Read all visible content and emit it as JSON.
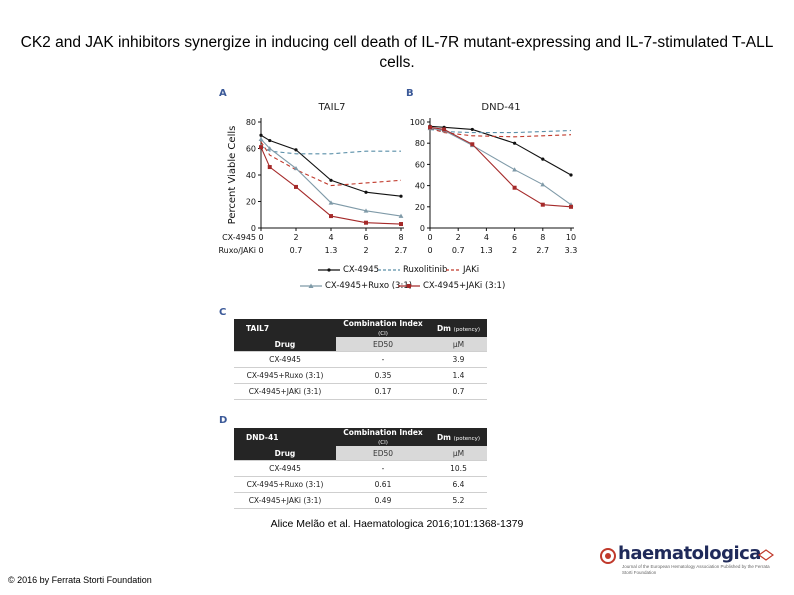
{
  "slide": {
    "title": "CK2 and JAK inhibitors synergize in inducing cell death of IL-7R mutant-expressing and IL-7-stimulated T-ALL cells.",
    "citation": "Alice Melão et al. Haematologica 2016;101:1368-1379",
    "copyright": "© 2016 by Ferrata Storti Foundation"
  },
  "logo": {
    "text": "haematologica",
    "subtitle": "Journal of the European Hematology Association Published by the Ferrata Storti Foundation"
  },
  "panels": {
    "A": "A",
    "B": "B",
    "C": "C",
    "D": "D"
  },
  "colors": {
    "cx": "#111111",
    "ruxo": "#5a8fa8",
    "jaki": "#c0392b",
    "cx_ruxo": "#7f9aa8",
    "cx_jaki": "#a52a2a"
  },
  "chart_data": [
    {
      "type": "line",
      "title": "TAIL7",
      "ylabel": "Percent Viable Cells",
      "ylim": [
        0,
        80
      ],
      "yticks": [
        0,
        20,
        40,
        60,
        80
      ],
      "x_row_labels": [
        "CX-4945",
        "Ruxo/JAKi"
      ],
      "x_cx": [
        "0",
        "2",
        "4",
        "6",
        "8"
      ],
      "x_partner": [
        "0",
        "0.7",
        "1.3",
        "2",
        "2.7"
      ],
      "x": [
        0,
        0.5,
        2,
        4,
        6,
        8
      ],
      "series": [
        {
          "name": "CX-4945",
          "values": [
            70,
            66,
            59,
            36,
            27,
            24
          ]
        },
        {
          "name": "Ruxolitinib",
          "values": [
            62,
            58,
            56,
            56,
            58,
            58
          ]
        },
        {
          "name": "JAKi",
          "values": [
            65,
            55,
            44,
            32,
            34,
            36
          ]
        },
        {
          "name": "CX-4945+Ruxo (3:1)",
          "values": [
            67,
            60,
            45,
            19,
            13,
            9
          ]
        },
        {
          "name": "CX-4945+JAKi (3:1)",
          "values": [
            61,
            46,
            31,
            9,
            4,
            3
          ]
        }
      ]
    },
    {
      "type": "line",
      "title": "DND-41",
      "ylabel": "",
      "ylim": [
        0,
        100
      ],
      "yticks": [
        0,
        20,
        40,
        60,
        80,
        100
      ],
      "x_cx": [
        "0",
        "2",
        "4",
        "6",
        "8",
        "10"
      ],
      "x_partner": [
        "0",
        "0.7",
        "1.3",
        "2",
        "2.7",
        "3.3"
      ],
      "x": [
        0,
        1,
        3,
        6,
        8,
        10
      ],
      "series": [
        {
          "name": "CX-4945",
          "values": [
            96,
            95,
            93,
            80,
            65,
            50
          ]
        },
        {
          "name": "Ruxolitinib",
          "values": [
            93,
            91,
            90,
            90,
            91,
            92
          ]
        },
        {
          "name": "JAKi",
          "values": [
            94,
            90,
            87,
            86,
            87,
            88
          ]
        },
        {
          "name": "CX-4945+Ruxo (3:1)",
          "values": [
            94,
            92,
            78,
            55,
            41,
            22
          ]
        },
        {
          "name": "CX-4945+JAKi (3:1)",
          "values": [
            95,
            93,
            79,
            38,
            22,
            20
          ]
        }
      ]
    }
  ],
  "legend": {
    "items": [
      "CX-4945",
      "Ruxolitinib",
      "JAKi",
      "CX-4945+Ruxo (3:1)",
      "CX-4945+JAKi (3:1)"
    ]
  },
  "tableC": {
    "cell_line": "TAIL7",
    "col_ci": "Combination Index",
    "col_ci_small": "(CI)",
    "col_dm": "Dm",
    "col_dm_small": "(potency)",
    "drug_label": "Drug",
    "sub_ci": "ED50",
    "sub_dm": "µM",
    "rows": [
      {
        "drug": "CX-4945",
        "ci": "-",
        "dm": "3.9"
      },
      {
        "drug": "CX-4945+Ruxo (3:1)",
        "ci": "0.35",
        "dm": "1.4"
      },
      {
        "drug": "CX-4945+JAKi (3:1)",
        "ci": "0.17",
        "dm": "0.7"
      }
    ]
  },
  "tableD": {
    "cell_line": "DND-41",
    "col_ci": "Combination Index",
    "col_ci_small": "(CI)",
    "col_dm": "Dm",
    "col_dm_small": "(potency)",
    "drug_label": "Drug",
    "sub_ci": "ED50",
    "sub_dm": "µM",
    "rows": [
      {
        "drug": "CX-4945",
        "ci": "-",
        "dm": "10.5"
      },
      {
        "drug": "CX-4945+Ruxo (3:1)",
        "ci": "0.61",
        "dm": "6.4"
      },
      {
        "drug": "CX-4945+JAKi (3:1)",
        "ci": "0.49",
        "dm": "5.2"
      }
    ]
  }
}
